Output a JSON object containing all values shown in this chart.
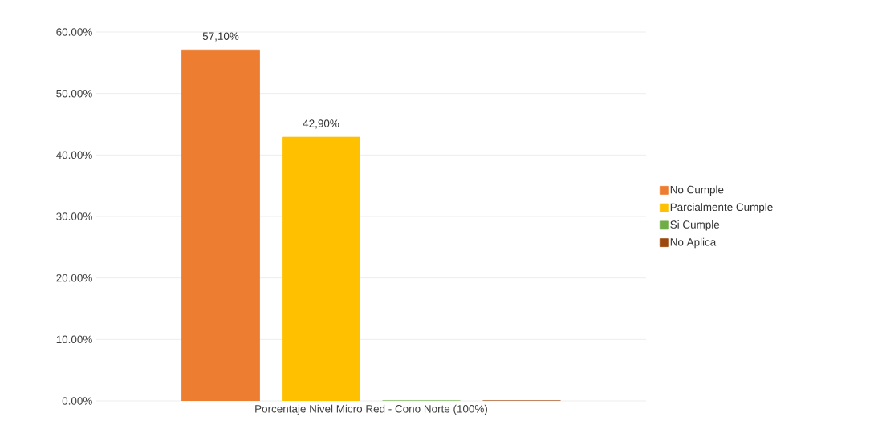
{
  "chart_data": {
    "type": "bar",
    "categories": [
      "Porcentaje Nivel Micro Red - Cono Norte (100%)"
    ],
    "series": [
      {
        "name": "No Cumple",
        "color": "#ed7d31",
        "values": [
          57.1
        ],
        "value_labels": [
          "57,10%"
        ]
      },
      {
        "name": "Parcialmente Cumple",
        "color": "#ffc000",
        "values": [
          42.9
        ],
        "value_labels": [
          "42,90%"
        ]
      },
      {
        "name": "Si Cumple",
        "color": "#70ad47",
        "values": [
          0
        ],
        "value_labels": [
          null
        ]
      },
      {
        "name": "No Aplica",
        "color": "#9e480e",
        "values": [
          0
        ],
        "value_labels": [
          null
        ]
      }
    ],
    "ylim": [
      0,
      60
    ],
    "yticks": [
      {
        "value": 0,
        "label": "0.00%"
      },
      {
        "value": 10,
        "label": "10.00%"
      },
      {
        "value": 20,
        "label": "20.00%"
      },
      {
        "value": 30,
        "label": "30.00%"
      },
      {
        "value": 40,
        "label": "40.00%"
      },
      {
        "value": 50,
        "label": "50.00%"
      },
      {
        "value": 60,
        "label": "60.00%"
      }
    ],
    "grid": "y",
    "legend": "right"
  }
}
